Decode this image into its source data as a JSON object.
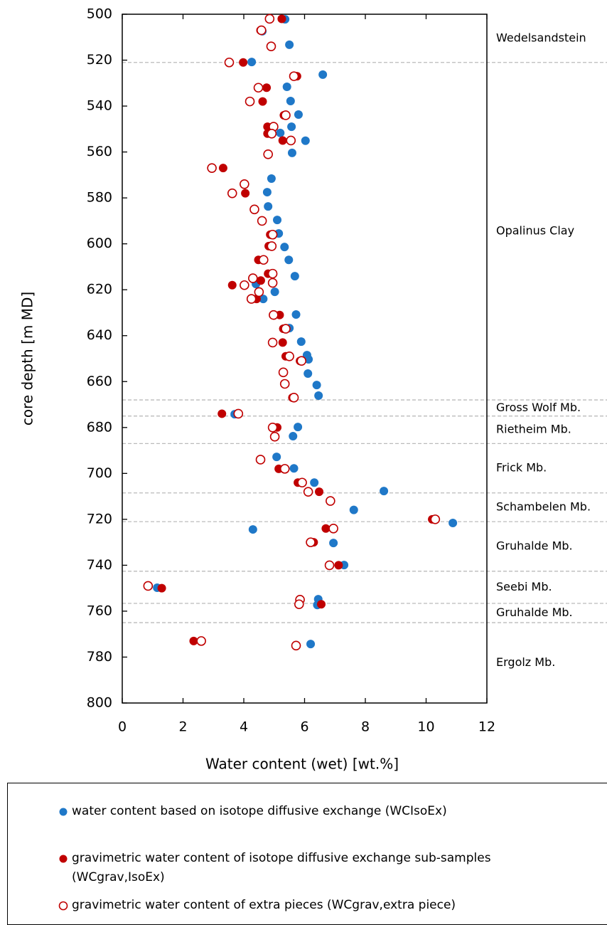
{
  "chart_data": {
    "type": "scatter",
    "xlabel": "Water content (wet) [wt.%]",
    "ylabel": "core depth [m MD]",
    "xlim": [
      0,
      12
    ],
    "xticks": [
      0,
      2,
      4,
      6,
      8,
      10,
      12
    ],
    "ylim": [
      500,
      800
    ],
    "yticks": [
      500,
      520,
      540,
      560,
      580,
      600,
      620,
      640,
      660,
      680,
      700,
      720,
      740,
      760,
      780,
      800
    ],
    "invert_y": true,
    "boundaries": [
      521,
      668,
      675,
      687,
      708.5,
      721,
      742.6,
      756.6,
      765
    ],
    "formations": [
      "Wedelsandstein",
      "Opalinus Clay",
      "Gross Wolf Mb.",
      "Rietheim Mb.",
      "Frick Mb.",
      "Schambelen Mb.",
      "Gruhalde Mb.",
      "Seebi Mb.",
      "Gruhalde Mb.",
      "Ergolz Mb."
    ],
    "series": [
      {
        "name": "water content based on isotope diffusive exchange (WCIsoEx)",
        "color": "#1f78c8",
        "marker": "filled",
        "x": [
          5.36,
          4.61,
          5.5,
          4.26,
          6.6,
          5.42,
          5.54,
          5.8,
          5.57,
          5.2,
          6.03,
          5.59,
          4.91,
          4.77,
          4.8,
          5.1,
          5.15,
          5.34,
          5.48,
          5.68,
          4.4,
          5.02,
          4.64,
          5.72,
          5.5,
          5.89,
          6.08,
          6.13,
          6.11,
          6.4,
          6.46,
          3.7,
          5.78,
          5.62,
          5.08,
          5.65,
          6.32,
          8.61,
          7.62,
          10.88,
          4.3,
          6.95,
          7.3,
          1.15,
          6.45,
          6.42,
          6.2
        ],
        "y": [
          502.2,
          507.4,
          513.3,
          520.8,
          526.3,
          531.6,
          537.8,
          543.7,
          549,
          551.7,
          555.1,
          560.4,
          571.6,
          577.5,
          583.7,
          589.6,
          595.5,
          601.4,
          607,
          614.1,
          617.5,
          620.9,
          624,
          630.8,
          636.7,
          642.6,
          648.5,
          650.3,
          656.5,
          661.5,
          666.1,
          674.2,
          679.8,
          683.8,
          692.8,
          697.8,
          704,
          707.7,
          715.9,
          721.6,
          724.4,
          730.3,
          739.9,
          749.8,
          754.8,
          757.3,
          774.3
        ]
      },
      {
        "name": "gravimetric water content of isotope diffusive exchange sub-samples (WCgrav,IsoEx)",
        "color": "#c00000",
        "marker": "filled",
        "x": [
          5.25,
          4.55,
          3.98,
          5.75,
          4.75,
          4.62,
          5.32,
          4.78,
          4.78,
          5.28,
          3.32,
          4.05,
          4.87,
          4.82,
          4.48,
          4.8,
          4.56,
          3.62,
          4.42,
          5.18,
          5.3,
          5.28,
          5.38,
          5.85,
          5.3,
          5.6,
          3.28,
          5.1,
          5.15,
          5.78,
          6.48,
          10.2,
          6.7,
          6.3,
          7.12,
          1.3,
          5.85,
          6.55,
          2.35
        ],
        "y": [
          502,
          507,
          521,
          527,
          532,
          538,
          544,
          549,
          552,
          555,
          567,
          578,
          596,
          601,
          607,
          613,
          616,
          618,
          624,
          631,
          637,
          643,
          649,
          651,
          656,
          667,
          674,
          680,
          698,
          704,
          708,
          720,
          724,
          730,
          740,
          750,
          755,
          757,
          773
        ]
      },
      {
        "name": "gravimetric water content of extra pieces (WCgrav,extra piece)",
        "color": "#c00000",
        "marker": "open",
        "x": [
          4.85,
          4.58,
          4.9,
          3.52,
          5.65,
          4.48,
          4.2,
          5.38,
          4.98,
          4.92,
          5.55,
          4.8,
          2.95,
          4.02,
          3.62,
          4.35,
          4.6,
          4.95,
          4.92,
          4.65,
          4.95,
          4.3,
          4.95,
          4.02,
          4.5,
          4.25,
          4.98,
          5.38,
          4.95,
          5.5,
          5.9,
          5.3,
          5.35,
          5.65,
          3.82,
          4.95,
          5.02,
          4.55,
          5.35,
          5.92,
          6.12,
          6.85,
          10.3,
          6.95,
          6.2,
          6.82,
          0.85,
          5.85,
          5.82,
          2.6,
          5.72
        ],
        "y": [
          502,
          507,
          514,
          521,
          527,
          532,
          538,
          544,
          549,
          552,
          555,
          561,
          567,
          574,
          578,
          585,
          590,
          596,
          601,
          607,
          613,
          615,
          617,
          618,
          621,
          624,
          631,
          637,
          643,
          649,
          651,
          656,
          661,
          667,
          674,
          680,
          684,
          694,
          698,
          704,
          708,
          712,
          720,
          724,
          730,
          740,
          749,
          755,
          757,
          773,
          775
        ]
      }
    ]
  }
}
